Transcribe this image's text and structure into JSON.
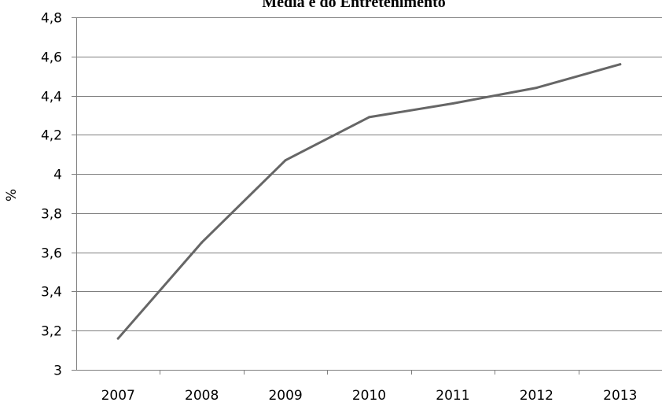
{
  "chart_data": {
    "type": "line",
    "title": "Media e do Entretenimento",
    "xlabel": "",
    "ylabel": "%",
    "categories": [
      "2007",
      "2008",
      "2009",
      "2010",
      "2011",
      "2012",
      "2013"
    ],
    "series": [
      {
        "values": [
          3.16,
          3.65,
          4.07,
          4.29,
          4.36,
          4.44,
          4.56
        ]
      }
    ],
    "ylim": [
      3,
      4.8
    ],
    "y_ticks": [
      "3",
      "3,2",
      "3,4",
      "3,6",
      "3,8",
      "4",
      "4,2",
      "4,4",
      "4,6",
      "4,8"
    ],
    "grid": true,
    "legend": "none",
    "colors": {
      "line": "#666666",
      "grid": "#7f7f7f",
      "axis": "#7f7f7f"
    }
  }
}
